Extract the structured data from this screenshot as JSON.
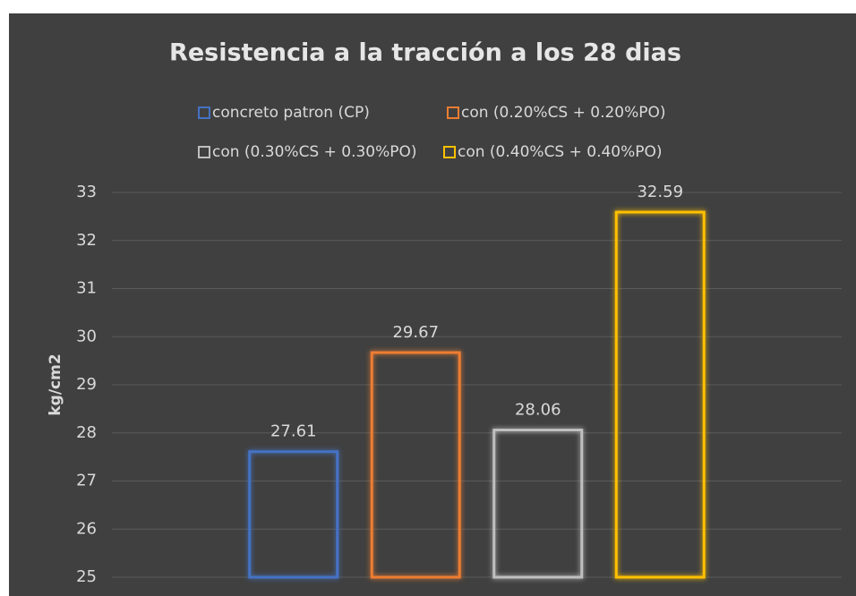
{
  "chart_data": {
    "type": "bar",
    "title": "Resistencia a la tracción a los 28 dias",
    "y_label": "kg/cm2",
    "categories": [
      null
    ],
    "series": [
      {
        "name": "concreto patron (CP)",
        "color": "#4472c4",
        "values": [
          27.61
        ]
      },
      {
        "name": "con (0.20%CS + 0.20%PO)",
        "color": "#ed7d31",
        "values": [
          29.67
        ]
      },
      {
        "name": "con (0.30%CS + 0.30%PO)",
        "color": "#bfbfbf",
        "values": [
          28.06
        ]
      },
      {
        "name": "con (0.40%CS + 0.40%PO)",
        "color": "#ffc000",
        "values": [
          32.59
        ]
      }
    ],
    "ylim": [
      25,
      33
    ],
    "yticks": [
      25,
      26,
      27,
      28,
      29,
      30,
      31,
      32,
      33
    ],
    "grid": true,
    "legend": "top"
  }
}
